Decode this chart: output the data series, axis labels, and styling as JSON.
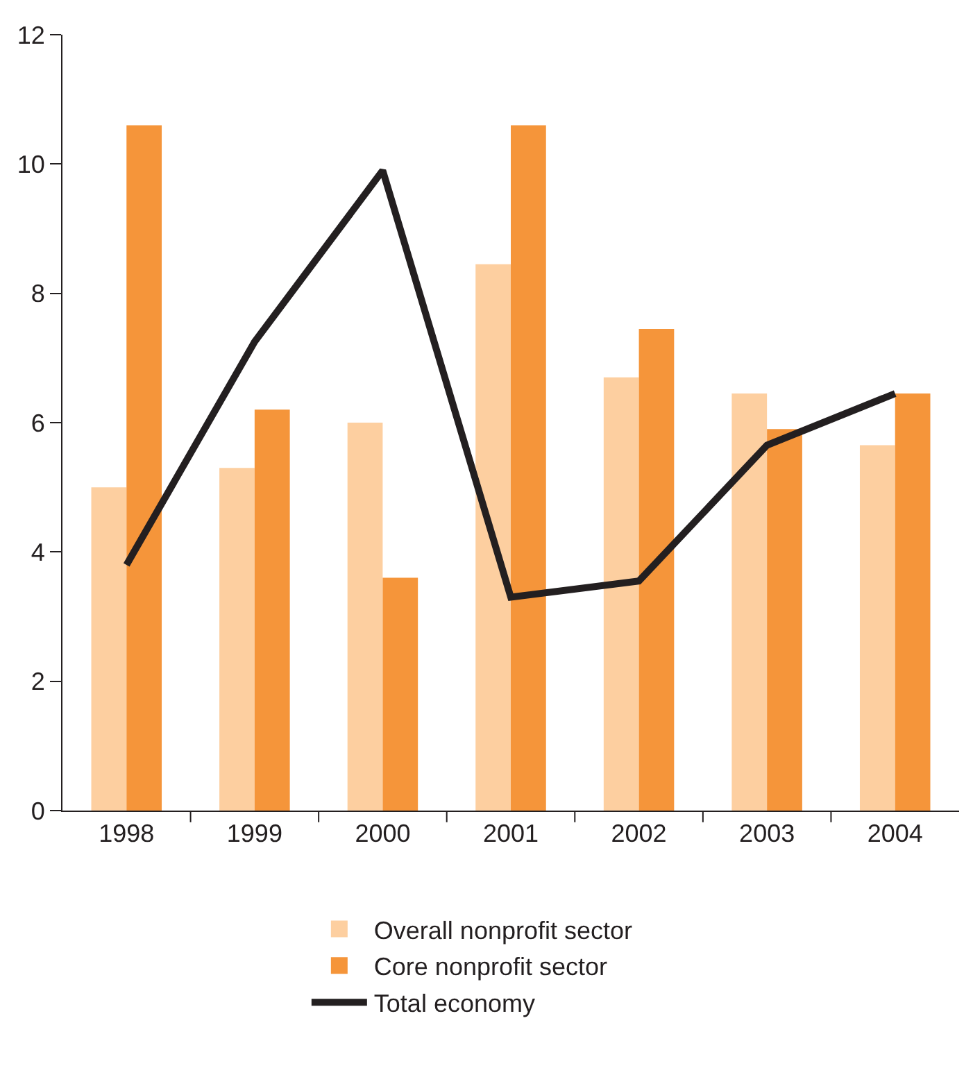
{
  "chart_data": {
    "type": "bar",
    "categories": [
      "1998",
      "1999",
      "2000",
      "2001",
      "2002",
      "2003",
      "2004"
    ],
    "series": [
      {
        "name": "Overall nonprofit sector",
        "color": "#fdcfa0",
        "values": [
          5.0,
          5.3,
          6.0,
          8.45,
          6.7,
          6.45,
          5.65
        ]
      },
      {
        "name": "Core nonprofit sector",
        "color": "#f5953a",
        "values": [
          10.6,
          6.2,
          3.6,
          10.6,
          7.45,
          5.9,
          6.45
        ]
      },
      {
        "name": "Total economy",
        "type": "line",
        "color": "#231f20",
        "values": [
          3.8,
          7.25,
          9.9,
          3.3,
          3.55,
          5.65,
          6.45
        ]
      }
    ],
    "ylim": [
      0,
      12
    ],
    "yticks": [
      0,
      2,
      4,
      6,
      8,
      10,
      12
    ],
    "legend": "bottom",
    "marker": "none",
    "line_style": "solid"
  }
}
